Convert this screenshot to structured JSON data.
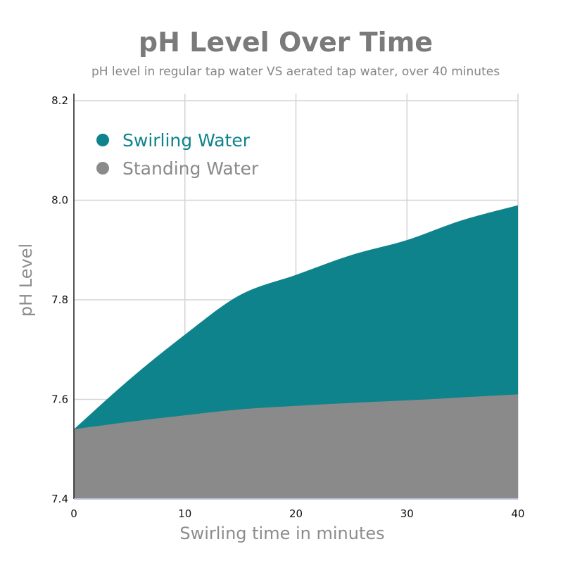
{
  "chart_data": {
    "type": "area",
    "title": "pH Level Over Time",
    "subtitle": "pH level in regular tap water VS aerated tap water, over 40 minutes",
    "xlabel": "Swirling time in minutes",
    "ylabel": "pH Level",
    "xlim": [
      0,
      40
    ],
    "ylim": [
      7.4,
      8.2
    ],
    "xticks": [
      "0",
      "10",
      "20",
      "30",
      "40"
    ],
    "yticks": [
      "7.4",
      "7.6",
      "7.8",
      "8.0",
      "8.2"
    ],
    "grid": true,
    "legend_position": "top-left",
    "series": [
      {
        "name": "Swirling Water",
        "color": "#0e838c",
        "x": [
          0,
          5,
          10,
          15,
          20,
          25,
          30,
          35,
          40
        ],
        "y": [
          7.54,
          7.64,
          7.73,
          7.81,
          7.85,
          7.89,
          7.92,
          7.96,
          7.99
        ]
      },
      {
        "name": "Standing Water",
        "color": "#8a8a8a",
        "x": [
          0,
          5,
          10,
          15,
          20,
          25,
          30,
          35,
          40
        ],
        "y": [
          7.54,
          7.555,
          7.568,
          7.58,
          7.587,
          7.593,
          7.598,
          7.604,
          7.61
        ]
      }
    ]
  }
}
